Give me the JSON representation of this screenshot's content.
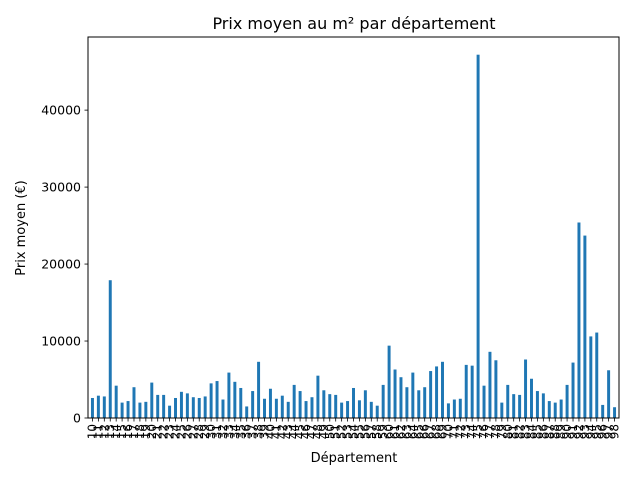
{
  "chart_data": {
    "type": "bar",
    "title": "Prix moyen au m² par département",
    "xlabel": "Département",
    "ylabel": "Prix moyen (€)",
    "ylim": [
      0,
      49500
    ],
    "yticks": [
      0,
      10000,
      20000,
      30000,
      40000
    ],
    "color": "#1f77b4",
    "grid": false,
    "legend": "none",
    "categories": [
      "10",
      "11",
      "12",
      "13",
      "14",
      "15",
      "16",
      "17",
      "18",
      "19",
      "20",
      "21",
      "22",
      "23",
      "24",
      "25",
      "26",
      "27",
      "28",
      "29",
      "30",
      "31",
      "32",
      "33",
      "34",
      "35",
      "36",
      "37",
      "38",
      "39",
      "40",
      "41",
      "42",
      "43",
      "44",
      "45",
      "46",
      "47",
      "48",
      "49",
      "50",
      "51",
      "52",
      "53",
      "54",
      "55",
      "56",
      "57",
      "58",
      "59",
      "60",
      "61",
      "62",
      "63",
      "64",
      "65",
      "66",
      "67",
      "68",
      "69",
      "70",
      "71",
      "72",
      "73",
      "74",
      "75",
      "76",
      "77",
      "78",
      "79",
      "80",
      "81",
      "82",
      "83",
      "84",
      "85",
      "86",
      "87",
      "88",
      "89",
      "90",
      "91",
      "92",
      "93",
      "94",
      "95",
      "96",
      "97",
      "98"
    ],
    "values": [
      2600,
      2900,
      2800,
      17900,
      4200,
      2000,
      2200,
      4000,
      2000,
      2100,
      4600,
      3000,
      3000,
      1600,
      2600,
      3400,
      3200,
      2700,
      2600,
      2800,
      4500,
      4800,
      2400,
      5900,
      4700,
      3900,
      1500,
      3500,
      7300,
      2500,
      3800,
      2500,
      2900,
      2100,
      4300,
      3500,
      2200,
      2700,
      5500,
      3600,
      3100,
      3000,
      2000,
      2200,
      3900,
      2300,
      3600,
      2100,
      1600,
      4300,
      9400,
      6300,
      5300,
      4000,
      5900,
      3600,
      4000,
      6100,
      6700,
      7300,
      1900,
      2400,
      2500,
      6900,
      6800,
      47200,
      4200,
      8600,
      7500,
      2000,
      4300,
      3100,
      3000,
      7600,
      5100,
      3500,
      3200,
      2200,
      2000,
      2400,
      4300,
      7200,
      25400,
      23700,
      10600,
      11100,
      1700,
      6200,
      1400
    ]
  }
}
